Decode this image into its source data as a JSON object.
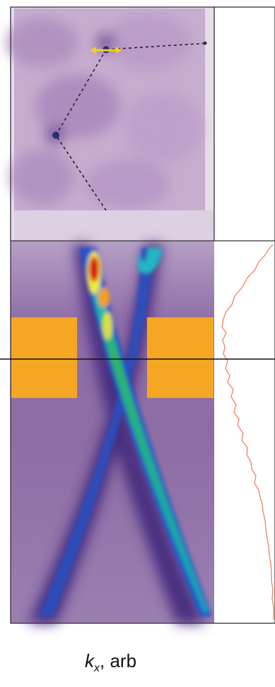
{
  "figure": {
    "panels": [
      "fermi-surface-map",
      "dispersion-map",
      "intensity-profile"
    ],
    "colormap": [
      "#f7f2f8",
      "#5a3a8a",
      "#1e4fc8",
      "#16a8c8",
      "#2fb868",
      "#f2ea3a",
      "#f4a020",
      "#d81a12"
    ],
    "highlight_color": "#f5a623",
    "profile_color": "#f08060"
  },
  "xlabel": {
    "symbol": "k",
    "subscript": "x",
    "rest": ", arb"
  }
}
